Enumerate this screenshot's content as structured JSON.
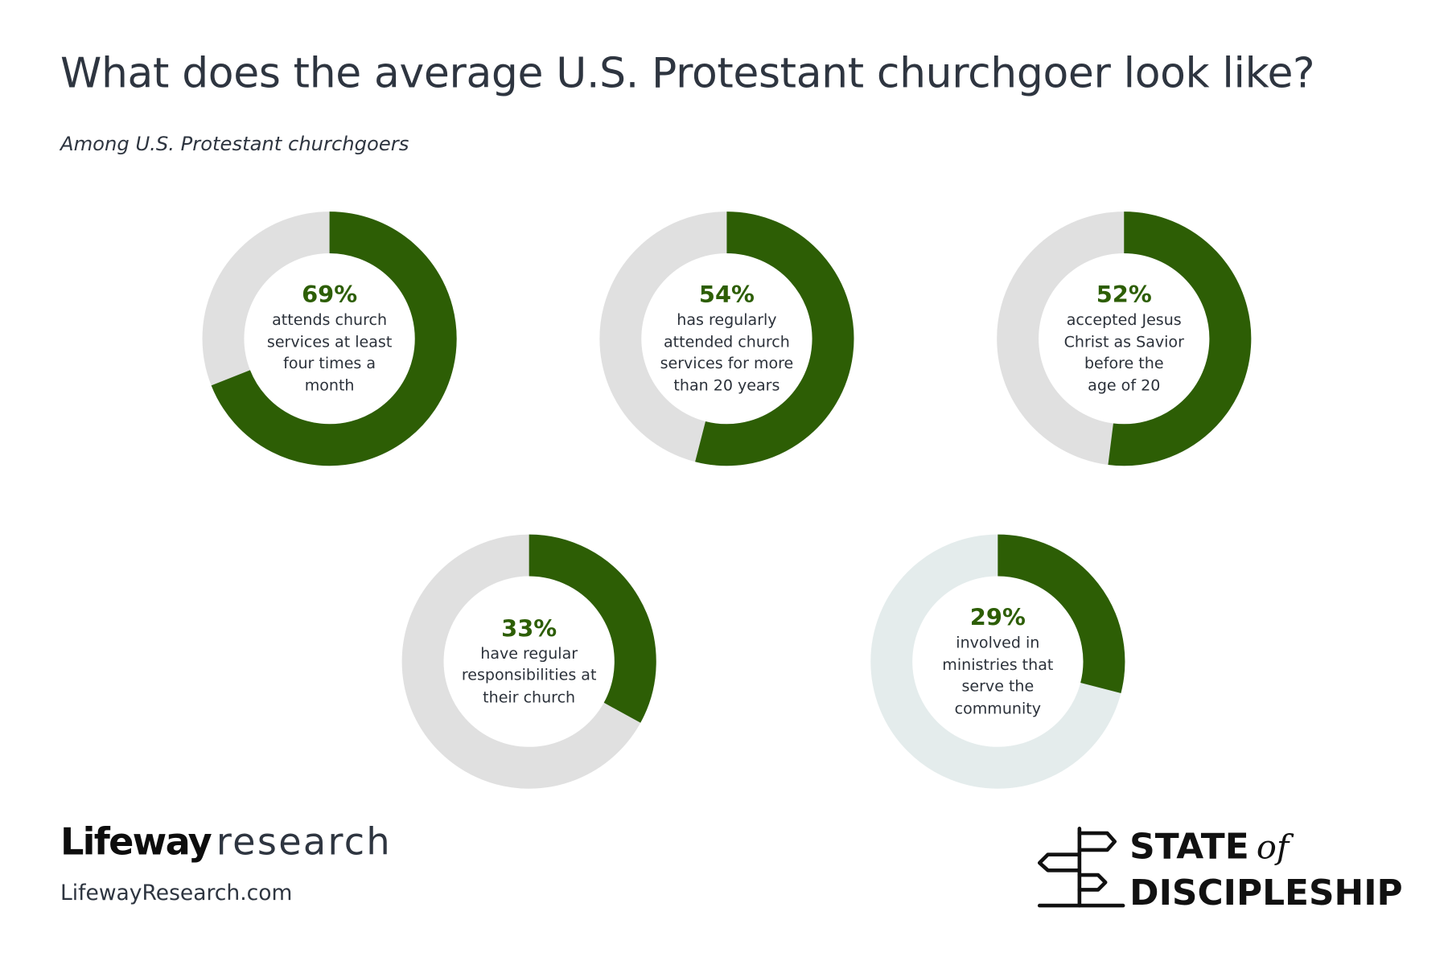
{
  "header": {
    "title": "What does the average U.S. Protestant churchgoer look like?",
    "subtitle": "Among U.S. Protestant churchgoers"
  },
  "colors": {
    "accent": "#2d5e05",
    "remainder": "#e0e0e0",
    "remainder_alt": "#e4ecec",
    "text": "#2e3540"
  },
  "chart_data": {
    "type": "pie",
    "subtype": "donut",
    "title": "What does the average U.S. Protestant churchgoer look like?",
    "subtitle": "Among U.S. Protestant churchgoers",
    "unit": "%",
    "items": [
      {
        "value": 69,
        "label": "69%",
        "description": "attends church services at least four times a month",
        "lines": [
          "attends church",
          "services at least",
          "four times a",
          "month"
        ]
      },
      {
        "value": 54,
        "label": "54%",
        "description": "has regularly attended church services for more than 20 years",
        "lines": [
          "has regularly",
          "attended church",
          "services for more",
          "than 20 years"
        ]
      },
      {
        "value": 52,
        "label": "52%",
        "description": "accepted Jesus Christ as Savior before the age of 20",
        "lines": [
          "accepted Jesus",
          "Christ as Savior",
          "before the",
          "age of 20"
        ]
      },
      {
        "value": 33,
        "label": "33%",
        "description": "have regular responsibilities at their church",
        "lines": [
          "have regular",
          "responsibilities at",
          "their church"
        ]
      },
      {
        "value": 29,
        "label": "29%",
        "description": "involved in ministries that serve the community",
        "lines": [
          "involved in",
          "ministries that",
          "serve the",
          "community"
        ]
      }
    ]
  },
  "footer": {
    "brand": "Lifeway",
    "brand_suffix": "research",
    "url": "LifewayResearch.com",
    "series_logo_line1": "STATE",
    "series_logo_of": "of",
    "series_logo_line2": "DISCIPLESHIP"
  }
}
